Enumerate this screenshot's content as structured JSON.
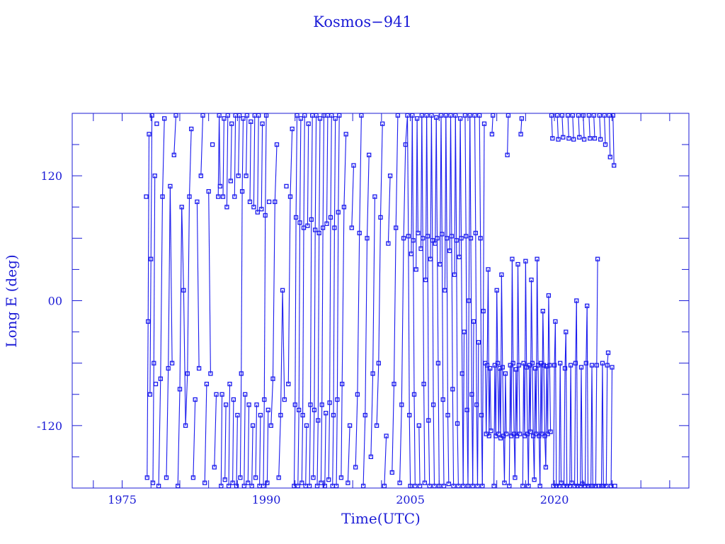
{
  "chart_data": {
    "type": "scatter",
    "title": "Kosmos−941",
    "xlabel": "Time(UTC)",
    "ylabel": "Long E (deg)",
    "xlim": [
      1969.8,
      2034.0
    ],
    "ylim": [
      -180,
      180
    ],
    "xticks": [
      {
        "value": 1975,
        "label": "1975"
      },
      {
        "value": 1990,
        "label": "1990"
      },
      {
        "value": 2005,
        "label": "2005"
      },
      {
        "value": 2020,
        "label": "2020"
      }
    ],
    "yticks": [
      {
        "value": 120,
        "label": "120"
      },
      {
        "value": 0,
        "label": "00"
      },
      {
        "value": -120,
        "label": "-120"
      }
    ],
    "grid": false,
    "color": "#1a1aee",
    "marker": "square",
    "connected": true,
    "points": [
      [
        1977.5,
        100
      ],
      [
        1977.6,
        -170
      ],
      [
        1977.7,
        -20
      ],
      [
        1977.8,
        160
      ],
      [
        1977.9,
        -90
      ],
      [
        1978.0,
        40
      ],
      [
        1978.1,
        178
      ],
      [
        1978.2,
        -175
      ],
      [
        1978.3,
        -60
      ],
      [
        1978.4,
        120
      ],
      [
        1978.5,
        -80
      ],
      [
        1978.6,
        170
      ],
      [
        1978.8,
        -178
      ],
      [
        1979.0,
        -75
      ],
      [
        1979.2,
        100
      ],
      [
        1979.4,
        175
      ],
      [
        1979.6,
        -170
      ],
      [
        1979.8,
        -65
      ],
      [
        1980.0,
        110
      ],
      [
        1980.2,
        -60
      ],
      [
        1980.4,
        140
      ],
      [
        1980.6,
        178
      ],
      [
        1980.8,
        -178
      ],
      [
        1981.0,
        -85
      ],
      [
        1981.2,
        90
      ],
      [
        1981.4,
        10
      ],
      [
        1981.6,
        -120
      ],
      [
        1981.8,
        -70
      ],
      [
        1982.0,
        100
      ],
      [
        1982.2,
        165
      ],
      [
        1982.4,
        -170
      ],
      [
        1982.6,
        -95
      ],
      [
        1982.8,
        95
      ],
      [
        1983.0,
        -65
      ],
      [
        1983.2,
        120
      ],
      [
        1983.4,
        178
      ],
      [
        1983.6,
        -175
      ],
      [
        1983.8,
        -80
      ],
      [
        1984.0,
        105
      ],
      [
        1984.2,
        -70
      ],
      [
        1984.4,
        150
      ],
      [
        1984.6,
        -160
      ],
      [
        1984.8,
        -90
      ],
      [
        1985.0,
        100
      ],
      [
        1985.1,
        178
      ],
      [
        1985.2,
        110
      ],
      [
        1985.3,
        -178
      ],
      [
        1985.4,
        -90
      ],
      [
        1985.5,
        100
      ],
      [
        1985.6,
        175
      ],
      [
        1985.7,
        -172
      ],
      [
        1985.8,
        -100
      ],
      [
        1985.9,
        90
      ],
      [
        1986.0,
        178
      ],
      [
        1986.1,
        -178
      ],
      [
        1986.2,
        -80
      ],
      [
        1986.3,
        115
      ],
      [
        1986.4,
        170
      ],
      [
        1986.5,
        -175
      ],
      [
        1986.6,
        -95
      ],
      [
        1986.7,
        100
      ],
      [
        1986.8,
        178
      ],
      [
        1986.9,
        -178
      ],
      [
        1987.0,
        -110
      ],
      [
        1987.1,
        120
      ],
      [
        1987.2,
        178
      ],
      [
        1987.3,
        -170
      ],
      [
        1987.4,
        -70
      ],
      [
        1987.5,
        105
      ],
      [
        1987.6,
        175
      ],
      [
        1987.7,
        -178
      ],
      [
        1987.8,
        -90
      ],
      [
        1987.9,
        120
      ],
      [
        1988.0,
        178
      ],
      [
        1988.1,
        -175
      ],
      [
        1988.2,
        -100
      ],
      [
        1988.3,
        95
      ],
      [
        1988.4,
        172
      ],
      [
        1988.5,
        -178
      ],
      [
        1988.6,
        -120
      ],
      [
        1988.7,
        90
      ],
      [
        1988.8,
        178
      ],
      [
        1988.9,
        -170
      ],
      [
        1989.0,
        -100
      ],
      [
        1989.1,
        85
      ],
      [
        1989.2,
        178
      ],
      [
        1989.3,
        -178
      ],
      [
        1989.4,
        -110
      ],
      [
        1989.5,
        88
      ],
      [
        1989.6,
        170
      ],
      [
        1989.7,
        -178
      ],
      [
        1989.8,
        -95
      ],
      [
        1989.9,
        82
      ],
      [
        1990.0,
        178
      ],
      [
        1990.1,
        -175
      ],
      [
        1990.2,
        -105
      ],
      [
        1990.3,
        95
      ],
      [
        1990.5,
        -120
      ],
      [
        1990.7,
        -75
      ],
      [
        1990.9,
        95
      ],
      [
        1991.1,
        150
      ],
      [
        1991.3,
        -170
      ],
      [
        1991.5,
        -110
      ],
      [
        1991.7,
        10
      ],
      [
        1991.9,
        -95
      ],
      [
        1992.1,
        110
      ],
      [
        1992.3,
        -80
      ],
      [
        1992.5,
        100
      ],
      [
        1992.7,
        165
      ],
      [
        1992.9,
        -178
      ],
      [
        1993.0,
        -100
      ],
      [
        1993.1,
        80
      ],
      [
        1993.2,
        178
      ],
      [
        1993.3,
        -178
      ],
      [
        1993.4,
        -105
      ],
      [
        1993.5,
        75
      ],
      [
        1993.6,
        175
      ],
      [
        1993.7,
        -175
      ],
      [
        1993.8,
        -110
      ],
      [
        1993.9,
        70
      ],
      [
        1994.0,
        178
      ],
      [
        1994.1,
        -178
      ],
      [
        1994.2,
        -120
      ],
      [
        1994.3,
        72
      ],
      [
        1994.4,
        170
      ],
      [
        1994.5,
        -178
      ],
      [
        1994.6,
        -100
      ],
      [
        1994.7,
        78
      ],
      [
        1994.8,
        178
      ],
      [
        1994.9,
        -170
      ],
      [
        1995.0,
        -105
      ],
      [
        1995.1,
        68
      ],
      [
        1995.2,
        178
      ],
      [
        1995.3,
        -178
      ],
      [
        1995.4,
        -115
      ],
      [
        1995.5,
        65
      ],
      [
        1995.6,
        175
      ],
      [
        1995.7,
        -175
      ],
      [
        1995.8,
        -100
      ],
      [
        1995.9,
        70
      ],
      [
        1996.0,
        178
      ],
      [
        1996.1,
        -178
      ],
      [
        1996.2,
        -108
      ],
      [
        1996.3,
        74
      ],
      [
        1996.4,
        178
      ],
      [
        1996.5,
        -172
      ],
      [
        1996.6,
        -98
      ],
      [
        1996.7,
        80
      ],
      [
        1996.8,
        178
      ],
      [
        1996.9,
        -178
      ],
      [
        1997.0,
        -110
      ],
      [
        1997.1,
        70
      ],
      [
        1997.2,
        175
      ],
      [
        1997.3,
        -178
      ],
      [
        1997.4,
        -95
      ],
      [
        1997.5,
        85
      ],
      [
        1997.6,
        178
      ],
      [
        1997.8,
        -170
      ],
      [
        1997.9,
        -80
      ],
      [
        1998.1,
        90
      ],
      [
        1998.3,
        160
      ],
      [
        1998.5,
        -175
      ],
      [
        1998.7,
        -120
      ],
      [
        1998.9,
        70
      ],
      [
        1999.1,
        130
      ],
      [
        1999.3,
        -160
      ],
      [
        1999.5,
        -90
      ],
      [
        1999.7,
        65
      ],
      [
        1999.9,
        178
      ],
      [
        2000.1,
        -178
      ],
      [
        2000.3,
        -110
      ],
      [
        2000.5,
        60
      ],
      [
        2000.7,
        140
      ],
      [
        2000.9,
        -150
      ],
      [
        2001.1,
        -70
      ],
      [
        2001.3,
        100
      ],
      [
        2001.5,
        -120
      ],
      [
        2001.7,
        -60
      ],
      [
        2001.9,
        80
      ],
      [
        2002.1,
        170
      ],
      [
        2002.3,
        -178
      ],
      [
        2002.5,
        -130
      ],
      [
        2002.7,
        55
      ],
      [
        2002.9,
        120
      ],
      [
        2003.1,
        -165
      ],
      [
        2003.3,
        -80
      ],
      [
        2003.5,
        70
      ],
      [
        2003.7,
        178
      ],
      [
        2003.9,
        -175
      ],
      [
        2004.1,
        -100
      ],
      [
        2004.3,
        60
      ],
      [
        2004.5,
        150
      ],
      [
        2004.7,
        178
      ],
      [
        2004.8,
        62
      ],
      [
        2004.9,
        -110
      ],
      [
        2005.0,
        -178
      ],
      [
        2005.1,
        45
      ],
      [
        2005.2,
        178
      ],
      [
        2005.3,
        58
      ],
      [
        2005.4,
        -90
      ],
      [
        2005.5,
        -178
      ],
      [
        2005.6,
        30
      ],
      [
        2005.7,
        175
      ],
      [
        2005.8,
        65
      ],
      [
        2005.9,
        -120
      ],
      [
        2006.0,
        -178
      ],
      [
        2006.1,
        50
      ],
      [
        2006.2,
        178
      ],
      [
        2006.3,
        60
      ],
      [
        2006.4,
        -80
      ],
      [
        2006.5,
        -175
      ],
      [
        2006.6,
        20
      ],
      [
        2006.7,
        178
      ],
      [
        2006.8,
        62
      ],
      [
        2006.9,
        -115
      ],
      [
        2007.0,
        -178
      ],
      [
        2007.1,
        40
      ],
      [
        2007.2,
        178
      ],
      [
        2007.3,
        58
      ],
      [
        2007.4,
        -100
      ],
      [
        2007.5,
        -178
      ],
      [
        2007.6,
        55
      ],
      [
        2007.7,
        176
      ],
      [
        2007.8,
        60
      ],
      [
        2007.9,
        -60
      ],
      [
        2008.0,
        -178
      ],
      [
        2008.1,
        35
      ],
      [
        2008.2,
        178
      ],
      [
        2008.3,
        64
      ],
      [
        2008.4,
        -95
      ],
      [
        2008.5,
        -178
      ],
      [
        2008.6,
        10
      ],
      [
        2008.7,
        178
      ],
      [
        2008.8,
        60
      ],
      [
        2008.9,
        -110
      ],
      [
        2009.0,
        -176
      ],
      [
        2009.1,
        48
      ],
      [
        2009.2,
        178
      ],
      [
        2009.3,
        62
      ],
      [
        2009.4,
        -85
      ],
      [
        2009.5,
        -178
      ],
      [
        2009.6,
        25
      ],
      [
        2009.7,
        178
      ],
      [
        2009.8,
        58
      ],
      [
        2009.9,
        -118
      ],
      [
        2010.0,
        -178
      ],
      [
        2010.1,
        42
      ],
      [
        2010.2,
        175
      ],
      [
        2010.3,
        60
      ],
      [
        2010.4,
        -70
      ],
      [
        2010.5,
        -178
      ],
      [
        2010.6,
        -30
      ],
      [
        2010.7,
        178
      ],
      [
        2010.8,
        62
      ],
      [
        2010.9,
        -105
      ],
      [
        2011.0,
        -178
      ],
      [
        2011.1,
        0
      ],
      [
        2011.2,
        178
      ],
      [
        2011.3,
        60
      ],
      [
        2011.4,
        -90
      ],
      [
        2011.5,
        -178
      ],
      [
        2011.6,
        -20
      ],
      [
        2011.7,
        178
      ],
      [
        2011.8,
        65
      ],
      [
        2011.9,
        -100
      ],
      [
        2012.0,
        -178
      ],
      [
        2012.1,
        -40
      ],
      [
        2012.2,
        178
      ],
      [
        2012.3,
        60
      ],
      [
        2012.4,
        -110
      ],
      [
        2012.5,
        -178
      ],
      [
        2012.6,
        -10
      ],
      [
        2012.7,
        170
      ],
      [
        2012.8,
        -60
      ],
      [
        2012.9,
        -128
      ],
      [
        2013.0,
        -62
      ],
      [
        2013.1,
        30
      ],
      [
        2013.2,
        -130
      ],
      [
        2013.3,
        -65
      ],
      [
        2013.4,
        -125
      ],
      [
        2013.5,
        160
      ],
      [
        2013.6,
        178
      ],
      [
        2013.7,
        -178
      ],
      [
        2013.8,
        -62
      ],
      [
        2013.9,
        -130
      ],
      [
        2014.0,
        10
      ],
      [
        2014.1,
        -60
      ],
      [
        2014.2,
        -128
      ],
      [
        2014.3,
        -65
      ],
      [
        2014.4,
        -132
      ],
      [
        2014.5,
        25
      ],
      [
        2014.6,
        -64
      ],
      [
        2014.7,
        -130
      ],
      [
        2014.8,
        -175
      ],
      [
        2014.9,
        -70
      ],
      [
        2015.0,
        -128
      ],
      [
        2015.1,
        140
      ],
      [
        2015.2,
        178
      ],
      [
        2015.3,
        -178
      ],
      [
        2015.4,
        -62
      ],
      [
        2015.5,
        -130
      ],
      [
        2015.6,
        40
      ],
      [
        2015.7,
        -60
      ],
      [
        2015.8,
        -128
      ],
      [
        2015.9,
        -170
      ],
      [
        2016.0,
        -66
      ],
      [
        2016.1,
        -130
      ],
      [
        2016.2,
        35
      ],
      [
        2016.3,
        -62
      ],
      [
        2016.4,
        -128
      ],
      [
        2016.5,
        160
      ],
      [
        2016.6,
        175
      ],
      [
        2016.7,
        -178
      ],
      [
        2016.8,
        -60
      ],
      [
        2016.9,
        -130
      ],
      [
        2017.0,
        38
      ],
      [
        2017.1,
        -64
      ],
      [
        2017.2,
        -128
      ],
      [
        2017.3,
        -178
      ],
      [
        2017.4,
        -62
      ],
      [
        2017.5,
        -126
      ],
      [
        2017.6,
        20
      ],
      [
        2017.7,
        -60
      ],
      [
        2017.8,
        -130
      ],
      [
        2017.9,
        -172
      ],
      [
        2018.0,
        -65
      ],
      [
        2018.1,
        -128
      ],
      [
        2018.2,
        40
      ],
      [
        2018.3,
        -62
      ],
      [
        2018.4,
        -130
      ],
      [
        2018.5,
        -178
      ],
      [
        2018.6,
        -60
      ],
      [
        2018.7,
        -128
      ],
      [
        2018.8,
        -10
      ],
      [
        2018.9,
        -62
      ],
      [
        2019.0,
        -130
      ],
      [
        2019.1,
        -160
      ],
      [
        2019.2,
        -63
      ],
      [
        2019.3,
        -128
      ],
      [
        2019.4,
        5
      ],
      [
        2019.5,
        -62
      ],
      [
        2019.6,
        -126
      ],
      [
        2019.7,
        178
      ],
      [
        2019.8,
        156
      ],
      [
        2019.9,
        -178
      ],
      [
        2020.0,
        -62
      ],
      [
        2020.1,
        -20
      ],
      [
        2020.2,
        -178
      ],
      [
        2020.3,
        178
      ],
      [
        2020.4,
        155
      ],
      [
        2020.5,
        -178
      ],
      [
        2020.6,
        -60
      ],
      [
        2020.7,
        -175
      ],
      [
        2020.8,
        178
      ],
      [
        2020.9,
        157
      ],
      [
        2021.0,
        -178
      ],
      [
        2021.1,
        -65
      ],
      [
        2021.2,
        -30
      ],
      [
        2021.3,
        -178
      ],
      [
        2021.4,
        178
      ],
      [
        2021.5,
        156
      ],
      [
        2021.6,
        -178
      ],
      [
        2021.7,
        -62
      ],
      [
        2021.8,
        -175
      ],
      [
        2021.9,
        178
      ],
      [
        2022.0,
        155
      ],
      [
        2022.1,
        -178
      ],
      [
        2022.2,
        -60
      ],
      [
        2022.3,
        0
      ],
      [
        2022.4,
        -178
      ],
      [
        2022.5,
        178
      ],
      [
        2022.6,
        157
      ],
      [
        2022.7,
        -178
      ],
      [
        2022.8,
        -64
      ],
      [
        2022.9,
        -176
      ],
      [
        2023.0,
        178
      ],
      [
        2023.1,
        155
      ],
      [
        2023.2,
        -178
      ],
      [
        2023.3,
        -60
      ],
      [
        2023.4,
        -5
      ],
      [
        2023.5,
        -178
      ],
      [
        2023.6,
        178
      ],
      [
        2023.7,
        156
      ],
      [
        2023.8,
        -178
      ],
      [
        2023.9,
        -62
      ],
      [
        2024.0,
        -178
      ],
      [
        2024.1,
        178
      ],
      [
        2024.2,
        156
      ],
      [
        2024.3,
        -178
      ],
      [
        2024.4,
        -62
      ],
      [
        2024.5,
        40
      ],
      [
        2024.6,
        -178
      ],
      [
        2024.7,
        178
      ],
      [
        2024.8,
        155
      ],
      [
        2024.9,
        -178
      ],
      [
        2025.0,
        -60
      ],
      [
        2025.1,
        -178
      ],
      [
        2025.2,
        178
      ],
      [
        2025.3,
        150
      ],
      [
        2025.4,
        -178
      ],
      [
        2025.5,
        -62
      ],
      [
        2025.6,
        -50
      ],
      [
        2025.7,
        178
      ],
      [
        2025.8,
        138
      ],
      [
        2025.9,
        -178
      ],
      [
        2026.0,
        -64
      ],
      [
        2026.1,
        178
      ],
      [
        2026.2,
        130
      ],
      [
        2026.3,
        -178
      ]
    ]
  }
}
